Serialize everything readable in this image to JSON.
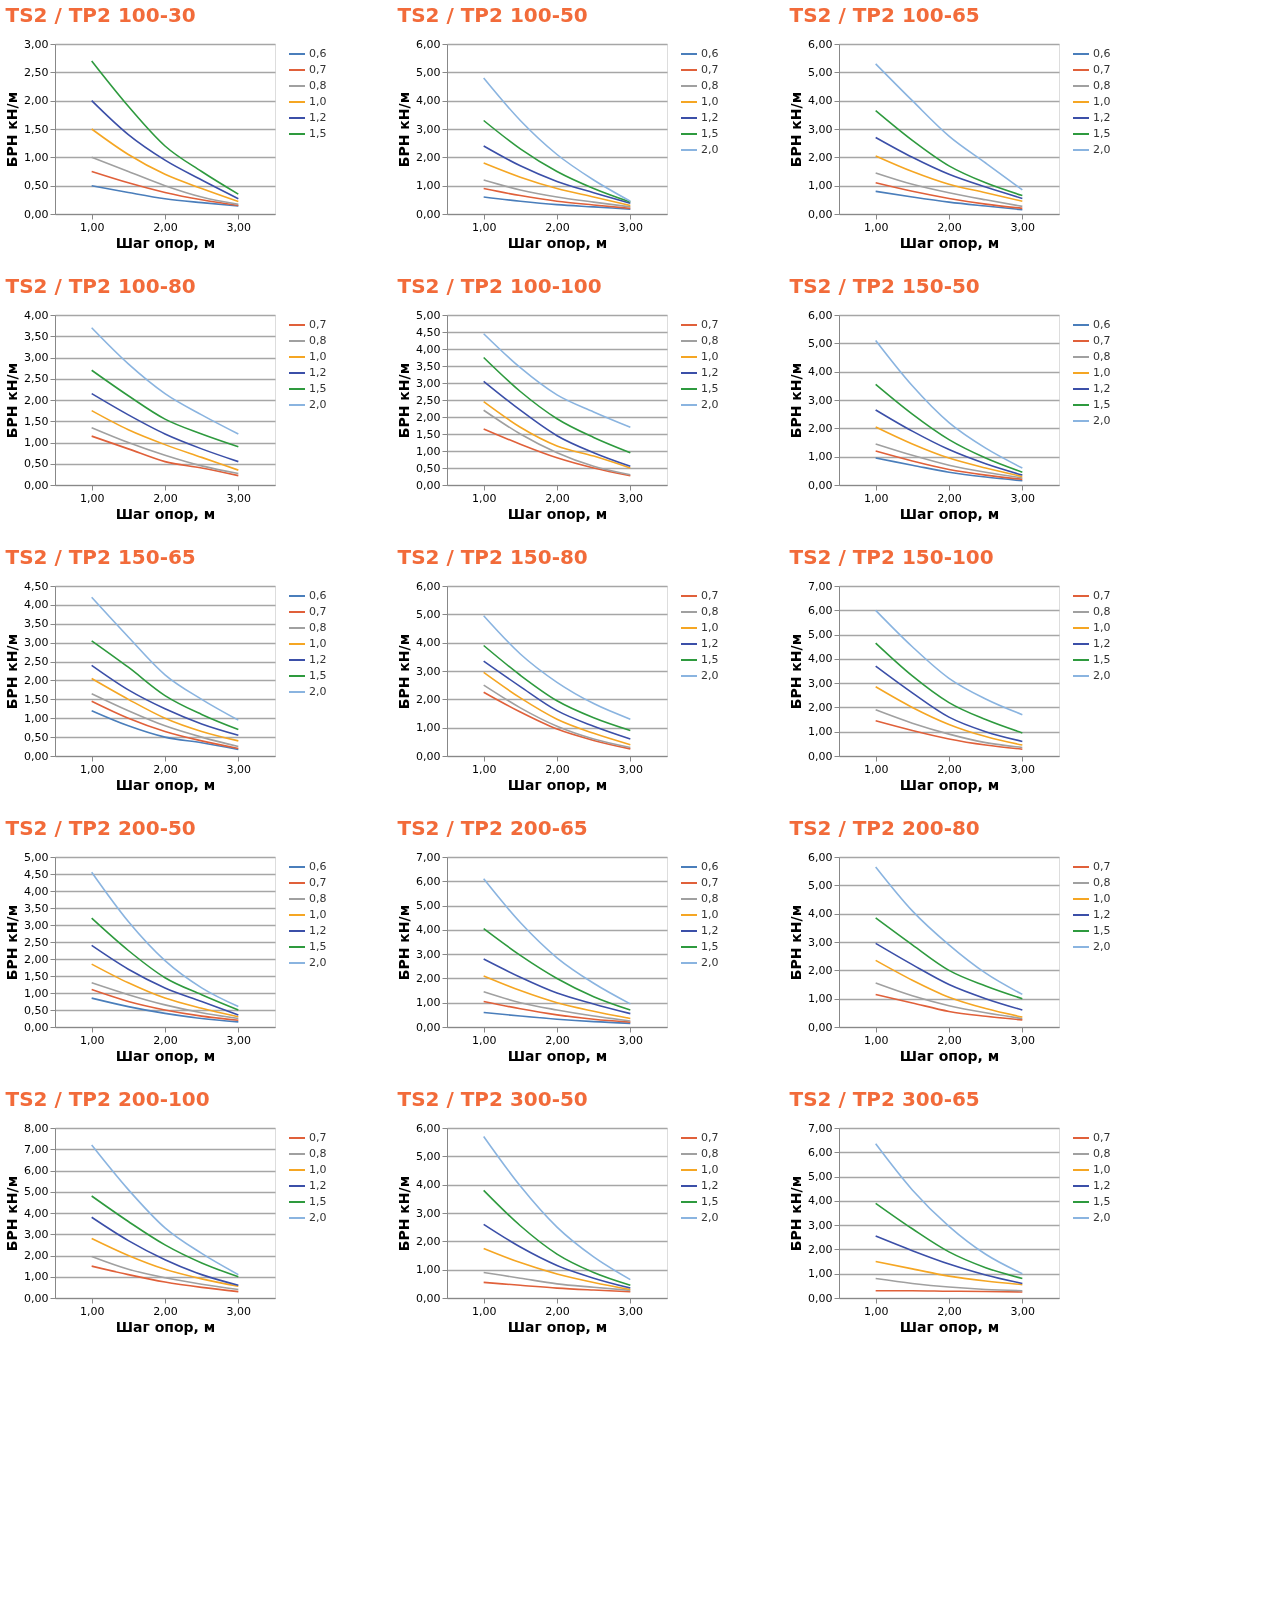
{
  "chart_data": [
    {
      "type": "line",
      "title": "TS2 / TP2 100-30",
      "xlabel": "Шаг опор, м",
      "ylabel": "БРН кН/м",
      "x": [
        1,
        1.5,
        2,
        2.5,
        3
      ],
      "xlim": [
        0.5,
        3.5
      ],
      "xticks": [
        {
          "value": 1,
          "label": "1,00"
        },
        {
          "value": 2,
          "label": "2,00"
        },
        {
          "value": 3,
          "label": "3,00"
        }
      ],
      "ylim": [
        0,
        3
      ],
      "yticks": [
        {
          "value": 0,
          "label": "0,00"
        },
        {
          "value": 0.5,
          "label": "0,50"
        },
        {
          "value": 1,
          "label": "1,00"
        },
        {
          "value": 1.5,
          "label": "1,50"
        },
        {
          "value": 2,
          "label": "2,00"
        },
        {
          "value": 2.5,
          "label": "2,50"
        },
        {
          "value": 3,
          "label": "3,00"
        }
      ],
      "grid": "y",
      "legend": "right",
      "line_style": "solid",
      "series": [
        {
          "name": "0,6",
          "color": "#4a7ebb",
          "values": [
            0.5,
            0.38,
            0.27,
            0.2,
            0.14
          ]
        },
        {
          "name": "0,7",
          "color": "#e0603a",
          "values": [
            0.75,
            0.55,
            0.38,
            0.25,
            0.15
          ]
        },
        {
          "name": "0,8",
          "color": "#a0a0a0",
          "values": [
            1.0,
            0.75,
            0.5,
            0.3,
            0.17
          ]
        },
        {
          "name": "1,0",
          "color": "#f5a623",
          "values": [
            1.5,
            1.05,
            0.7,
            0.45,
            0.22
          ]
        },
        {
          "name": "1,2",
          "color": "#3b4fa8",
          "values": [
            2.0,
            1.4,
            0.95,
            0.6,
            0.27
          ]
        },
        {
          "name": "1,5",
          "color": "#2e9a3e",
          "values": [
            2.7,
            1.9,
            1.2,
            0.75,
            0.35
          ]
        }
      ]
    },
    {
      "type": "line",
      "title": "TS2 / TP2 100-50",
      "xlabel": "Шаг опор, м",
      "ylabel": "БРН кН/м",
      "x": [
        1,
        1.5,
        2,
        2.5,
        3
      ],
      "xlim": [
        0.5,
        3.5
      ],
      "xticks": [
        {
          "value": 1,
          "label": "1,00"
        },
        {
          "value": 2,
          "label": "2,00"
        },
        {
          "value": 3,
          "label": "3,00"
        }
      ],
      "ylim": [
        0,
        6
      ],
      "yticks": [
        {
          "value": 0,
          "label": "0,00"
        },
        {
          "value": 1,
          "label": "1,00"
        },
        {
          "value": 2,
          "label": "2,00"
        },
        {
          "value": 3,
          "label": "3,00"
        },
        {
          "value": 4,
          "label": "4,00"
        },
        {
          "value": 5,
          "label": "5,00"
        },
        {
          "value": 6,
          "label": "6,00"
        }
      ],
      "grid": "y",
      "legend": "right",
      "line_style": "solid",
      "series": [
        {
          "name": "0,6",
          "color": "#4a7ebb",
          "values": [
            0.6,
            0.45,
            0.33,
            0.25,
            0.17
          ]
        },
        {
          "name": "0,7",
          "color": "#e0603a",
          "values": [
            0.9,
            0.65,
            0.45,
            0.32,
            0.2
          ]
        },
        {
          "name": "0,8",
          "color": "#a0a0a0",
          "values": [
            1.2,
            0.85,
            0.6,
            0.42,
            0.25
          ]
        },
        {
          "name": "1,0",
          "color": "#f5a623",
          "values": [
            1.8,
            1.3,
            0.9,
            0.6,
            0.3
          ]
        },
        {
          "name": "1,2",
          "color": "#3b4fa8",
          "values": [
            2.4,
            1.7,
            1.15,
            0.75,
            0.38
          ]
        },
        {
          "name": "1,5",
          "color": "#2e9a3e",
          "values": [
            3.3,
            2.3,
            1.5,
            0.9,
            0.42
          ]
        },
        {
          "name": "2,0",
          "color": "#8ab4e0",
          "values": [
            4.8,
            3.3,
            2.1,
            1.2,
            0.45
          ]
        }
      ]
    },
    {
      "type": "line",
      "title": "TS2 / TP2 100-65",
      "xlabel": "Шаг опор, м",
      "ylabel": "БРН кН/м",
      "x": [
        1,
        1.5,
        2,
        2.5,
        3
      ],
      "xlim": [
        0.5,
        3.5
      ],
      "xticks": [
        {
          "value": 1,
          "label": "1,00"
        },
        {
          "value": 2,
          "label": "2,00"
        },
        {
          "value": 3,
          "label": "3,00"
        }
      ],
      "ylim": [
        0,
        6
      ],
      "yticks": [
        {
          "value": 0,
          "label": "0,00"
        },
        {
          "value": 1,
          "label": "1,00"
        },
        {
          "value": 2,
          "label": "2,00"
        },
        {
          "value": 3,
          "label": "3,00"
        },
        {
          "value": 4,
          "label": "4,00"
        },
        {
          "value": 5,
          "label": "5,00"
        },
        {
          "value": 6,
          "label": "6,00"
        }
      ],
      "grid": "y",
      "legend": "right",
      "line_style": "solid",
      "series": [
        {
          "name": "0,6",
          "color": "#4a7ebb",
          "values": [
            0.8,
            0.6,
            0.42,
            0.28,
            0.15
          ]
        },
        {
          "name": "0,7",
          "color": "#e0603a",
          "values": [
            1.1,
            0.8,
            0.55,
            0.35,
            0.2
          ]
        },
        {
          "name": "0,8",
          "color": "#a0a0a0",
          "values": [
            1.45,
            1.05,
            0.75,
            0.5,
            0.27
          ]
        },
        {
          "name": "1,0",
          "color": "#f5a623",
          "values": [
            2.05,
            1.5,
            1.05,
            0.75,
            0.45
          ]
        },
        {
          "name": "1,2",
          "color": "#3b4fa8",
          "values": [
            2.7,
            2.0,
            1.4,
            0.95,
            0.55
          ]
        },
        {
          "name": "1,5",
          "color": "#2e9a3e",
          "values": [
            3.65,
            2.6,
            1.7,
            1.1,
            0.65
          ]
        },
        {
          "name": "2,0",
          "color": "#8ab4e0",
          "values": [
            5.3,
            4.0,
            2.75,
            1.8,
            0.85
          ]
        }
      ]
    },
    {
      "type": "line",
      "title": "TS2 / TP2 100-80",
      "xlabel": "Шаг опор, м",
      "ylabel": "БРН кН/м",
      "x": [
        1,
        1.5,
        2,
        2.5,
        3
      ],
      "xlim": [
        0.5,
        3.5
      ],
      "xticks": [
        {
          "value": 1,
          "label": "1,00"
        },
        {
          "value": 2,
          "label": "2,00"
        },
        {
          "value": 3,
          "label": "3,00"
        }
      ],
      "ylim": [
        0,
        4
      ],
      "yticks": [
        {
          "value": 0,
          "label": "0,00"
        },
        {
          "value": 0.5,
          "label": "0,50"
        },
        {
          "value": 1,
          "label": "1,00"
        },
        {
          "value": 1.5,
          "label": "1,50"
        },
        {
          "value": 2,
          "label": "2,00"
        },
        {
          "value": 2.5,
          "label": "2,50"
        },
        {
          "value": 3,
          "label": "3,00"
        },
        {
          "value": 3.5,
          "label": "3,50"
        },
        {
          "value": 4,
          "label": "4,00"
        }
      ],
      "grid": "y",
      "legend": "right",
      "line_style": "solid",
      "series": [
        {
          "name": "0,7",
          "color": "#e0603a",
          "values": [
            1.15,
            0.85,
            0.55,
            0.4,
            0.22
          ]
        },
        {
          "name": "0,8",
          "color": "#a0a0a0",
          "values": [
            1.35,
            1.0,
            0.7,
            0.45,
            0.27
          ]
        },
        {
          "name": "1,0",
          "color": "#f5a623",
          "values": [
            1.75,
            1.3,
            0.95,
            0.65,
            0.35
          ]
        },
        {
          "name": "1,2",
          "color": "#3b4fa8",
          "values": [
            2.15,
            1.65,
            1.2,
            0.85,
            0.55
          ]
        },
        {
          "name": "1,5",
          "color": "#2e9a3e",
          "values": [
            2.7,
            2.1,
            1.55,
            1.2,
            0.9
          ]
        },
        {
          "name": "2,0",
          "color": "#8ab4e0",
          "values": [
            3.7,
            2.85,
            2.15,
            1.65,
            1.2
          ]
        }
      ]
    },
    {
      "type": "line",
      "title": "TS2 / TP2 100-100",
      "xlabel": "Шаг опор, м",
      "ylabel": "БРН кН/м",
      "x": [
        1,
        1.5,
        2,
        2.5,
        3
      ],
      "xlim": [
        0.5,
        3.5
      ],
      "xticks": [
        {
          "value": 1,
          "label": "1,00"
        },
        {
          "value": 2,
          "label": "2,00"
        },
        {
          "value": 3,
          "label": "3,00"
        }
      ],
      "ylim": [
        0,
        5
      ],
      "yticks": [
        {
          "value": 0,
          "label": "0,00"
        },
        {
          "value": 0.5,
          "label": "0,50"
        },
        {
          "value": 1,
          "label": "1,00"
        },
        {
          "value": 1.5,
          "label": "1,50"
        },
        {
          "value": 2,
          "label": "2,00"
        },
        {
          "value": 2.5,
          "label": "2,50"
        },
        {
          "value": 3,
          "label": "3,00"
        },
        {
          "value": 3.5,
          "label": "3,50"
        },
        {
          "value": 4,
          "label": "4,00"
        },
        {
          "value": 4.5,
          "label": "4,50"
        },
        {
          "value": 5,
          "label": "5,00"
        }
      ],
      "grid": "y",
      "legend": "right",
      "line_style": "solid",
      "series": [
        {
          "name": "0,7",
          "color": "#e0603a",
          "values": [
            1.65,
            1.2,
            0.8,
            0.5,
            0.27
          ]
        },
        {
          "name": "0,8",
          "color": "#a0a0a0",
          "values": [
            2.2,
            1.5,
            0.95,
            0.55,
            0.3
          ]
        },
        {
          "name": "1,0",
          "color": "#f5a623",
          "values": [
            2.45,
            1.7,
            1.15,
            0.85,
            0.5
          ]
        },
        {
          "name": "1,2",
          "color": "#3b4fa8",
          "values": [
            3.05,
            2.2,
            1.45,
            0.95,
            0.55
          ]
        },
        {
          "name": "1,5",
          "color": "#2e9a3e",
          "values": [
            3.75,
            2.75,
            1.95,
            1.4,
            0.95
          ]
        },
        {
          "name": "2,0",
          "color": "#8ab4e0",
          "values": [
            4.45,
            3.45,
            2.65,
            2.15,
            1.7
          ]
        }
      ]
    },
    {
      "type": "line",
      "title": "TS2 / TP2 150-50",
      "xlabel": "Шаг опор, м",
      "ylabel": "БРН кН/м",
      "x": [
        1,
        1.5,
        2,
        2.5,
        3
      ],
      "xlim": [
        0.5,
        3.5
      ],
      "xticks": [
        {
          "value": 1,
          "label": "1,00"
        },
        {
          "value": 2,
          "label": "2,00"
        },
        {
          "value": 3,
          "label": "3,00"
        }
      ],
      "ylim": [
        0,
        6
      ],
      "yticks": [
        {
          "value": 0,
          "label": "0,00"
        },
        {
          "value": 1,
          "label": "1,00"
        },
        {
          "value": 2,
          "label": "2,00"
        },
        {
          "value": 3,
          "label": "3,00"
        },
        {
          "value": 4,
          "label": "4,00"
        },
        {
          "value": 5,
          "label": "5,00"
        },
        {
          "value": 6,
          "label": "6,00"
        }
      ],
      "grid": "y",
      "legend": "right",
      "line_style": "solid",
      "series": [
        {
          "name": "0,6",
          "color": "#4a7ebb",
          "values": [
            0.95,
            0.7,
            0.45,
            0.28,
            0.15
          ]
        },
        {
          "name": "0,7",
          "color": "#e0603a",
          "values": [
            1.2,
            0.85,
            0.55,
            0.35,
            0.2
          ]
        },
        {
          "name": "0,8",
          "color": "#a0a0a0",
          "values": [
            1.45,
            1.05,
            0.7,
            0.45,
            0.25
          ]
        },
        {
          "name": "1,0",
          "color": "#f5a623",
          "values": [
            2.05,
            1.45,
            0.95,
            0.6,
            0.3
          ]
        },
        {
          "name": "1,2",
          "color": "#3b4fa8",
          "values": [
            2.65,
            1.9,
            1.25,
            0.75,
            0.35
          ]
        },
        {
          "name": "1,5",
          "color": "#2e9a3e",
          "values": [
            3.55,
            2.5,
            1.6,
            0.95,
            0.45
          ]
        },
        {
          "name": "2,0",
          "color": "#8ab4e0",
          "values": [
            5.1,
            3.5,
            2.2,
            1.3,
            0.6
          ]
        }
      ]
    },
    {
      "type": "line",
      "title": "TS2 / TP2 150-65",
      "xlabel": "Шаг опор, м",
      "ylabel": "БРН кН/м",
      "x": [
        1,
        1.5,
        2,
        2.5,
        3
      ],
      "xlim": [
        0.5,
        3.5
      ],
      "xticks": [
        {
          "value": 1,
          "label": "1,00"
        },
        {
          "value": 2,
          "label": "2,00"
        },
        {
          "value": 3,
          "label": "3,00"
        }
      ],
      "ylim": [
        0,
        4.5
      ],
      "yticks": [
        {
          "value": 0,
          "label": "0,00"
        },
        {
          "value": 0.5,
          "label": "0,50"
        },
        {
          "value": 1,
          "label": "1,00"
        },
        {
          "value": 1.5,
          "label": "1,50"
        },
        {
          "value": 2,
          "label": "2,00"
        },
        {
          "value": 2.5,
          "label": "2,50"
        },
        {
          "value": 3,
          "label": "3,00"
        },
        {
          "value": 3.5,
          "label": "3,50"
        },
        {
          "value": 4,
          "label": "4,00"
        },
        {
          "value": 4.5,
          "label": "4,50"
        }
      ],
      "grid": "y",
      "legend": "right",
      "line_style": "solid",
      "series": [
        {
          "name": "0,6",
          "color": "#4a7ebb",
          "values": [
            1.2,
            0.8,
            0.5,
            0.35,
            0.17
          ]
        },
        {
          "name": "0,7",
          "color": "#e0603a",
          "values": [
            1.45,
            1.0,
            0.65,
            0.4,
            0.2
          ]
        },
        {
          "name": "0,8",
          "color": "#a0a0a0",
          "values": [
            1.65,
            1.2,
            0.8,
            0.5,
            0.25
          ]
        },
        {
          "name": "1,0",
          "color": "#f5a623",
          "values": [
            2.05,
            1.5,
            1.0,
            0.65,
            0.4
          ]
        },
        {
          "name": "1,2",
          "color": "#3b4fa8",
          "values": [
            2.4,
            1.75,
            1.25,
            0.85,
            0.55
          ]
        },
        {
          "name": "1,5",
          "color": "#2e9a3e",
          "values": [
            3.05,
            2.35,
            1.6,
            1.1,
            0.7
          ]
        },
        {
          "name": "2,0",
          "color": "#8ab4e0",
          "values": [
            4.2,
            3.15,
            2.15,
            1.5,
            0.95
          ]
        }
      ]
    },
    {
      "type": "line",
      "title": "TS2 / TP2 150-80",
      "xlabel": "Шаг опор, м",
      "ylabel": "БРН кН/м",
      "x": [
        1,
        1.5,
        2,
        2.5,
        3
      ],
      "xlim": [
        0.5,
        3.5
      ],
      "xticks": [
        {
          "value": 1,
          "label": "1,00"
        },
        {
          "value": 2,
          "label": "2,00"
        },
        {
          "value": 3,
          "label": "3,00"
        }
      ],
      "ylim": [
        0,
        6
      ],
      "yticks": [
        {
          "value": 0,
          "label": "0,00"
        },
        {
          "value": 1,
          "label": "1,00"
        },
        {
          "value": 2,
          "label": "2,00"
        },
        {
          "value": 3,
          "label": "3,00"
        },
        {
          "value": 4,
          "label": "4,00"
        },
        {
          "value": 5,
          "label": "5,00"
        },
        {
          "value": 6,
          "label": "6,00"
        }
      ],
      "grid": "y",
      "legend": "right",
      "line_style": "solid",
      "series": [
        {
          "name": "0,7",
          "color": "#e0603a",
          "values": [
            2.25,
            1.55,
            0.95,
            0.55,
            0.25
          ]
        },
        {
          "name": "0,8",
          "color": "#a0a0a0",
          "values": [
            2.5,
            1.7,
            1.05,
            0.6,
            0.3
          ]
        },
        {
          "name": "1,0",
          "color": "#f5a623",
          "values": [
            2.95,
            2.05,
            1.3,
            0.8,
            0.4
          ]
        },
        {
          "name": "1,2",
          "color": "#3b4fa8",
          "values": [
            3.35,
            2.45,
            1.6,
            1.05,
            0.6
          ]
        },
        {
          "name": "1,5",
          "color": "#2e9a3e",
          "values": [
            3.9,
            2.85,
            1.95,
            1.35,
            0.9
          ]
        },
        {
          "name": "2,0",
          "color": "#8ab4e0",
          "values": [
            4.95,
            3.6,
            2.6,
            1.85,
            1.3
          ]
        }
      ]
    },
    {
      "type": "line",
      "title": "TS2 / TP2 150-100",
      "xlabel": "Шаг опор, м",
      "ylabel": "БРН кН/м",
      "x": [
        1,
        1.5,
        2,
        2.5,
        3
      ],
      "xlim": [
        0.5,
        3.5
      ],
      "xticks": [
        {
          "value": 1,
          "label": "1,00"
        },
        {
          "value": 2,
          "label": "2,00"
        },
        {
          "value": 3,
          "label": "3,00"
        }
      ],
      "ylim": [
        0,
        7
      ],
      "yticks": [
        {
          "value": 0,
          "label": "0,00"
        },
        {
          "value": 1,
          "label": "1,00"
        },
        {
          "value": 2,
          "label": "2,00"
        },
        {
          "value": 3,
          "label": "3,00"
        },
        {
          "value": 4,
          "label": "4,00"
        },
        {
          "value": 5,
          "label": "5,00"
        },
        {
          "value": 6,
          "label": "6,00"
        },
        {
          "value": 7,
          "label": "7,00"
        }
      ],
      "grid": "y",
      "legend": "right",
      "line_style": "solid",
      "series": [
        {
          "name": "0,7",
          "color": "#e0603a",
          "values": [
            1.45,
            1.05,
            0.7,
            0.45,
            0.28
          ]
        },
        {
          "name": "0,8",
          "color": "#a0a0a0",
          "values": [
            1.9,
            1.35,
            0.9,
            0.55,
            0.35
          ]
        },
        {
          "name": "1,0",
          "color": "#f5a623",
          "values": [
            2.85,
            2.0,
            1.3,
            0.8,
            0.45
          ]
        },
        {
          "name": "1,2",
          "color": "#3b4fa8",
          "values": [
            3.7,
            2.6,
            1.6,
            1.0,
            0.6
          ]
        },
        {
          "name": "1,5",
          "color": "#2e9a3e",
          "values": [
            4.65,
            3.3,
            2.2,
            1.5,
            0.95
          ]
        },
        {
          "name": "2,0",
          "color": "#8ab4e0",
          "values": [
            6.0,
            4.5,
            3.2,
            2.35,
            1.7
          ]
        }
      ]
    },
    {
      "type": "line",
      "title": "TS2 / TP2 200-50",
      "xlabel": "Шаг опор, м",
      "ylabel": "БРН кН/м",
      "x": [
        1,
        1.5,
        2,
        2.5,
        3
      ],
      "xlim": [
        0.5,
        3.5
      ],
      "xticks": [
        {
          "value": 1,
          "label": "1,00"
        },
        {
          "value": 2,
          "label": "2,00"
        },
        {
          "value": 3,
          "label": "3,00"
        }
      ],
      "ylim": [
        0,
        5
      ],
      "yticks": [
        {
          "value": 0,
          "label": "0,00"
        },
        {
          "value": 0.5,
          "label": "0,50"
        },
        {
          "value": 1,
          "label": "1,00"
        },
        {
          "value": 1.5,
          "label": "1,50"
        },
        {
          "value": 2,
          "label": "2,00"
        },
        {
          "value": 2.5,
          "label": "2,50"
        },
        {
          "value": 3,
          "label": "3,00"
        },
        {
          "value": 3.5,
          "label": "3,50"
        },
        {
          "value": 4,
          "label": "4,00"
        },
        {
          "value": 4.5,
          "label": "4,50"
        },
        {
          "value": 5,
          "label": "5,00"
        }
      ],
      "grid": "y",
      "legend": "right",
      "line_style": "solid",
      "series": [
        {
          "name": "0,6",
          "color": "#4a7ebb",
          "values": [
            0.85,
            0.6,
            0.4,
            0.25,
            0.15
          ]
        },
        {
          "name": "0,7",
          "color": "#e0603a",
          "values": [
            1.1,
            0.75,
            0.5,
            0.32,
            0.2
          ]
        },
        {
          "name": "0,8",
          "color": "#a0a0a0",
          "values": [
            1.3,
            0.95,
            0.65,
            0.42,
            0.25
          ]
        },
        {
          "name": "1,0",
          "color": "#f5a623",
          "values": [
            1.85,
            1.3,
            0.85,
            0.55,
            0.3
          ]
        },
        {
          "name": "1,2",
          "color": "#3b4fa8",
          "values": [
            2.4,
            1.7,
            1.15,
            0.75,
            0.35
          ]
        },
        {
          "name": "1,5",
          "color": "#2e9a3e",
          "values": [
            3.2,
            2.25,
            1.45,
            0.95,
            0.5
          ]
        },
        {
          "name": "2,0",
          "color": "#8ab4e0",
          "values": [
            4.55,
            3.1,
            1.95,
            1.15,
            0.6
          ]
        }
      ]
    },
    {
      "type": "line",
      "title": "TS2 / TP2 200-65",
      "xlabel": "Шаг опор, м",
      "ylabel": "БРН кН/м",
      "x": [
        1,
        1.5,
        2,
        2.5,
        3
      ],
      "xlim": [
        0.5,
        3.5
      ],
      "xticks": [
        {
          "value": 1,
          "label": "1,00"
        },
        {
          "value": 2,
          "label": "2,00"
        },
        {
          "value": 3,
          "label": "3,00"
        }
      ],
      "ylim": [
        0,
        7
      ],
      "yticks": [
        {
          "value": 0,
          "label": "0,00"
        },
        {
          "value": 1,
          "label": "1,00"
        },
        {
          "value": 2,
          "label": "2,00"
        },
        {
          "value": 3,
          "label": "3,00"
        },
        {
          "value": 4,
          "label": "4,00"
        },
        {
          "value": 5,
          "label": "5,00"
        },
        {
          "value": 6,
          "label": "6,00"
        },
        {
          "value": 7,
          "label": "7,00"
        }
      ],
      "grid": "y",
      "legend": "right",
      "line_style": "solid",
      "series": [
        {
          "name": "0,6",
          "color": "#4a7ebb",
          "values": [
            0.6,
            0.45,
            0.32,
            0.22,
            0.15
          ]
        },
        {
          "name": "0,7",
          "color": "#e0603a",
          "values": [
            1.05,
            0.75,
            0.5,
            0.32,
            0.2
          ]
        },
        {
          "name": "0,8",
          "color": "#a0a0a0",
          "values": [
            1.45,
            1.0,
            0.7,
            0.45,
            0.25
          ]
        },
        {
          "name": "1,0",
          "color": "#f5a623",
          "values": [
            2.1,
            1.5,
            1.0,
            0.65,
            0.35
          ]
        },
        {
          "name": "1,2",
          "color": "#3b4fa8",
          "values": [
            2.8,
            2.05,
            1.4,
            0.95,
            0.55
          ]
        },
        {
          "name": "1,5",
          "color": "#2e9a3e",
          "values": [
            4.05,
            2.95,
            2.0,
            1.25,
            0.7
          ]
        },
        {
          "name": "2,0",
          "color": "#8ab4e0",
          "values": [
            6.1,
            4.3,
            2.85,
            1.8,
            0.95
          ]
        }
      ]
    },
    {
      "type": "line",
      "title": "TS2 / TP2 200-80",
      "xlabel": "Шаг опор, м",
      "ylabel": "БРН кН/м",
      "x": [
        1,
        1.5,
        2,
        2.5,
        3
      ],
      "xlim": [
        0.5,
        3.5
      ],
      "xticks": [
        {
          "value": 1,
          "label": "1,00"
        },
        {
          "value": 2,
          "label": "2,00"
        },
        {
          "value": 3,
          "label": "3,00"
        }
      ],
      "ylim": [
        0,
        6
      ],
      "yticks": [
        {
          "value": 0,
          "label": "0,00"
        },
        {
          "value": 1,
          "label": "1,00"
        },
        {
          "value": 2,
          "label": "2,00"
        },
        {
          "value": 3,
          "label": "3,00"
        },
        {
          "value": 4,
          "label": "4,00"
        },
        {
          "value": 5,
          "label": "5,00"
        },
        {
          "value": 6,
          "label": "6,00"
        }
      ],
      "grid": "y",
      "legend": "right",
      "line_style": "solid",
      "series": [
        {
          "name": "0,7",
          "color": "#e0603a",
          "values": [
            1.15,
            0.85,
            0.55,
            0.38,
            0.25
          ]
        },
        {
          "name": "0,8",
          "color": "#a0a0a0",
          "values": [
            1.55,
            1.1,
            0.75,
            0.5,
            0.3
          ]
        },
        {
          "name": "1,0",
          "color": "#f5a623",
          "values": [
            2.35,
            1.65,
            1.05,
            0.65,
            0.35
          ]
        },
        {
          "name": "1,2",
          "color": "#3b4fa8",
          "values": [
            2.95,
            2.2,
            1.5,
            1.0,
            0.6
          ]
        },
        {
          "name": "1,5",
          "color": "#2e9a3e",
          "values": [
            3.85,
            2.9,
            2.0,
            1.45,
            1.0
          ]
        },
        {
          "name": "2,0",
          "color": "#8ab4e0",
          "values": [
            5.65,
            4.1,
            2.9,
            1.9,
            1.15
          ]
        }
      ]
    },
    {
      "type": "line",
      "title": "TS2 / TP2 200-100",
      "xlabel": "Шаг опор, м",
      "ylabel": "БРН кН/м",
      "x": [
        1,
        1.5,
        2,
        2.5,
        3
      ],
      "xlim": [
        0.5,
        3.5
      ],
      "xticks": [
        {
          "value": 1,
          "label": "1,00"
        },
        {
          "value": 2,
          "label": "2,00"
        },
        {
          "value": 3,
          "label": "3,00"
        }
      ],
      "ylim": [
        0,
        8
      ],
      "yticks": [
        {
          "value": 0,
          "label": "0,00"
        },
        {
          "value": 1,
          "label": "1,00"
        },
        {
          "value": 2,
          "label": "2,00"
        },
        {
          "value": 3,
          "label": "3,00"
        },
        {
          "value": 4,
          "label": "4,00"
        },
        {
          "value": 5,
          "label": "5,00"
        },
        {
          "value": 6,
          "label": "6,00"
        },
        {
          "value": 7,
          "label": "7,00"
        },
        {
          "value": 8,
          "label": "8,00"
        }
      ],
      "grid": "y",
      "legend": "right",
      "line_style": "solid",
      "series": [
        {
          "name": "0,7",
          "color": "#e0603a",
          "values": [
            1.5,
            1.1,
            0.75,
            0.5,
            0.3
          ]
        },
        {
          "name": "0,8",
          "color": "#a0a0a0",
          "values": [
            1.95,
            1.35,
            0.95,
            0.65,
            0.4
          ]
        },
        {
          "name": "1,0",
          "color": "#f5a623",
          "values": [
            2.8,
            2.0,
            1.35,
            0.9,
            0.55
          ]
        },
        {
          "name": "1,2",
          "color": "#3b4fa8",
          "values": [
            3.8,
            2.7,
            1.8,
            1.1,
            0.6
          ]
        },
        {
          "name": "1,5",
          "color": "#2e9a3e",
          "values": [
            4.8,
            3.6,
            2.5,
            1.65,
            1.0
          ]
        },
        {
          "name": "2,0",
          "color": "#8ab4e0",
          "values": [
            7.2,
            5.1,
            3.3,
            2.1,
            1.1
          ]
        }
      ]
    },
    {
      "type": "line",
      "title": "TS2 / TP2 300-50",
      "xlabel": "Шаг опор, м",
      "ylabel": "БРН кН/м",
      "x": [
        1,
        1.5,
        2,
        2.5,
        3
      ],
      "xlim": [
        0.5,
        3.5
      ],
      "xticks": [
        {
          "value": 1,
          "label": "1,00"
        },
        {
          "value": 2,
          "label": "2,00"
        },
        {
          "value": 3,
          "label": "3,00"
        }
      ],
      "ylim": [
        0,
        6
      ],
      "yticks": [
        {
          "value": 0,
          "label": "0,00"
        },
        {
          "value": 1,
          "label": "1,00"
        },
        {
          "value": 2,
          "label": "2,00"
        },
        {
          "value": 3,
          "label": "3,00"
        },
        {
          "value": 4,
          "label": "4,00"
        },
        {
          "value": 5,
          "label": "5,00"
        },
        {
          "value": 6,
          "label": "6,00"
        }
      ],
      "grid": "y",
      "legend": "right",
      "line_style": "solid",
      "series": [
        {
          "name": "0,7",
          "color": "#e0603a",
          "values": [
            0.55,
            0.45,
            0.35,
            0.28,
            0.22
          ]
        },
        {
          "name": "0,8",
          "color": "#a0a0a0",
          "values": [
            0.9,
            0.7,
            0.5,
            0.38,
            0.27
          ]
        },
        {
          "name": "1,0",
          "color": "#f5a623",
          "values": [
            1.75,
            1.25,
            0.85,
            0.55,
            0.3
          ]
        },
        {
          "name": "1,2",
          "color": "#3b4fa8",
          "values": [
            2.6,
            1.8,
            1.15,
            0.7,
            0.35
          ]
        },
        {
          "name": "1,5",
          "color": "#2e9a3e",
          "values": [
            3.8,
            2.55,
            1.55,
            0.9,
            0.45
          ]
        },
        {
          "name": "2,0",
          "color": "#8ab4e0",
          "values": [
            5.7,
            3.95,
            2.5,
            1.45,
            0.65
          ]
        }
      ]
    },
    {
      "type": "line",
      "title": "TS2 / TP2 300-65",
      "xlabel": "Шаг опор, м",
      "ylabel": "БРН кН/м",
      "x": [
        1,
        1.5,
        2,
        2.5,
        3
      ],
      "xlim": [
        0.5,
        3.5
      ],
      "xticks": [
        {
          "value": 1,
          "label": "1,00"
        },
        {
          "value": 2,
          "label": "2,00"
        },
        {
          "value": 3,
          "label": "3,00"
        }
      ],
      "ylim": [
        0,
        7
      ],
      "yticks": [
        {
          "value": 0,
          "label": "0,00"
        },
        {
          "value": 1,
          "label": "1,00"
        },
        {
          "value": 2,
          "label": "2,00"
        },
        {
          "value": 3,
          "label": "3,00"
        },
        {
          "value": 4,
          "label": "4,00"
        },
        {
          "value": 5,
          "label": "5,00"
        },
        {
          "value": 6,
          "label": "6,00"
        },
        {
          "value": 7,
          "label": "7,00"
        }
      ],
      "grid": "y",
      "legend": "right",
      "line_style": "solid",
      "series": [
        {
          "name": "0,7",
          "color": "#e0603a",
          "values": [
            0.3,
            0.3,
            0.28,
            0.27,
            0.25
          ]
        },
        {
          "name": "0,8",
          "color": "#a0a0a0",
          "values": [
            0.8,
            0.6,
            0.45,
            0.35,
            0.3
          ]
        },
        {
          "name": "1,0",
          "color": "#f5a623",
          "values": [
            1.5,
            1.2,
            0.9,
            0.7,
            0.55
          ]
        },
        {
          "name": "1,2",
          "color": "#3b4fa8",
          "values": [
            2.55,
            1.95,
            1.4,
            0.95,
            0.6
          ]
        },
        {
          "name": "1,5",
          "color": "#2e9a3e",
          "values": [
            3.9,
            2.85,
            1.9,
            1.25,
            0.8
          ]
        },
        {
          "name": "2,0",
          "color": "#8ab4e0",
          "values": [
            6.35,
            4.45,
            2.95,
            1.8,
            1.0
          ]
        }
      ]
    }
  ]
}
